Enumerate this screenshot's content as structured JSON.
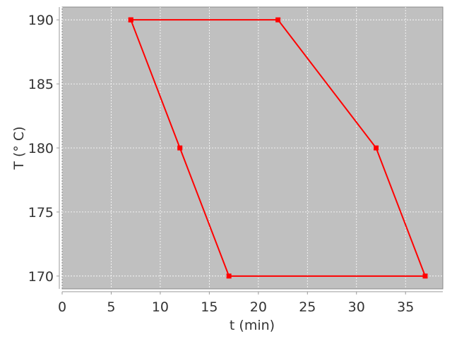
{
  "chart_data": {
    "type": "line",
    "title": "",
    "xlabel": "t (min)",
    "ylabel": "T (° C)",
    "xlim": [
      0,
      38.8
    ],
    "ylim": [
      169,
      191
    ],
    "xticks": [
      0,
      5,
      10,
      15,
      20,
      25,
      30,
      35
    ],
    "yticks": [
      170,
      175,
      180,
      185,
      190
    ],
    "grid": true,
    "closed": true,
    "series": [
      {
        "x": [
          7,
          22,
          32,
          37,
          17,
          12,
          7
        ],
        "y": [
          190,
          190,
          180,
          170,
          170,
          180,
          190
        ],
        "color": "#ff0000",
        "marker": "square"
      }
    ],
    "colors": {
      "plot_background": "#c0c0c0",
      "grid": "#ffffff"
    }
  }
}
